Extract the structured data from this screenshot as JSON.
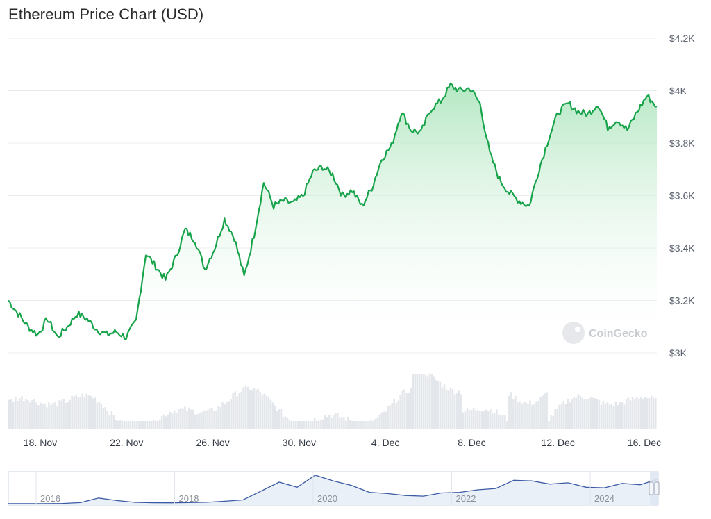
{
  "page_title": "Ethereum Price Chart (USD)",
  "watermark": "CoinGecko",
  "colors": {
    "line": "#16a34a",
    "fill_top": "#a7e3b8",
    "volume": "#e3e6ea",
    "navigator_line": "#3b5ba5",
    "navigator_fill": "#eaf0f8"
  },
  "chart_data": {
    "type": "line",
    "title": "Ethereum Price Chart (USD)",
    "x_start": "2024-11-17",
    "x_end": "2024-12-16",
    "x_tick_labels": [
      "18. Nov",
      "22. Nov",
      "26. Nov",
      "30. Nov",
      "4. Dec",
      "8. Dec",
      "12. Dec",
      "16. Dec"
    ],
    "y_tick_labels": [
      "$3K",
      "$3.2K",
      "$3.4K",
      "$3.6K",
      "$3.8K",
      "$4K",
      "$4.2K"
    ],
    "ylim": [
      3000,
      4200
    ],
    "grid": true,
    "series": [
      {
        "name": "",
        "x": [
          "2024-11-17",
          "2024-11-17",
          "2024-11-18",
          "2024-11-18",
          "2024-11-18",
          "2024-11-19",
          "2024-11-19",
          "2024-11-19",
          "2024-11-20",
          "2024-11-20",
          "2024-11-21",
          "2024-11-21",
          "2024-11-21",
          "2024-11-22",
          "2024-11-22",
          "2024-11-23",
          "2024-11-23",
          "2024-11-24",
          "2024-11-24",
          "2024-11-25",
          "2024-11-25",
          "2024-11-26",
          "2024-11-26",
          "2024-11-26",
          "2024-11-27",
          "2024-11-27",
          "2024-11-28",
          "2024-11-28",
          "2024-11-29",
          "2024-11-29",
          "2024-11-30",
          "2024-11-30",
          "2024-12-01",
          "2024-12-01",
          "2024-12-02",
          "2024-12-02",
          "2024-12-03",
          "2024-12-03",
          "2024-12-03",
          "2024-12-04",
          "2024-12-04",
          "2024-12-05",
          "2024-12-05",
          "2024-12-06",
          "2024-12-06",
          "2024-12-07",
          "2024-12-07",
          "2024-12-08",
          "2024-12-08",
          "2024-12-09",
          "2024-12-09",
          "2024-12-09",
          "2024-12-10",
          "2024-12-10",
          "2024-12-11",
          "2024-12-11",
          "2024-12-12",
          "2024-12-12",
          "2024-12-13",
          "2024-12-13",
          "2024-12-14",
          "2024-12-14",
          "2024-12-15",
          "2024-12-15",
          "2024-12-16",
          "2024-12-16",
          "2024-12-16"
        ],
        "values": [
          3200,
          3150,
          3100,
          3070,
          3130,
          3060,
          3100,
          3150,
          3130,
          3090,
          3070,
          3080,
          3060,
          3120,
          3380,
          3330,
          3280,
          3360,
          3470,
          3430,
          3320,
          3400,
          3510,
          3440,
          3290,
          3450,
          3650,
          3560,
          3580,
          3570,
          3600,
          3690,
          3710,
          3680,
          3600,
          3620,
          3560,
          3630,
          3740,
          3790,
          3920,
          3850,
          3840,
          3930,
          3960,
          4020,
          4000,
          4010,
          3950,
          3760,
          3660,
          3610,
          3580,
          3560,
          3700,
          3820,
          3920,
          3950,
          3920,
          3910,
          3950,
          3860,
          3890,
          3850,
          3920,
          3980,
          3940
        ]
      }
    ],
    "volume_note": "",
    "navigator": {
      "x_tick_labels": [
        "2016",
        "2018",
        "2020",
        "2022",
        "2024"
      ],
      "values": [
        10,
        12,
        15,
        40,
        180,
        900,
        500,
        220,
        150,
        140,
        180,
        230,
        400,
        600,
        2000,
        3400,
        2600,
        4500,
        3600,
        2900,
        1800,
        1600,
        1300,
        1200,
        1700,
        1800,
        2200,
        2400,
        3700,
        3600,
        3100,
        3300,
        2600,
        2500,
        3200,
        3000,
        3900
      ]
    }
  }
}
